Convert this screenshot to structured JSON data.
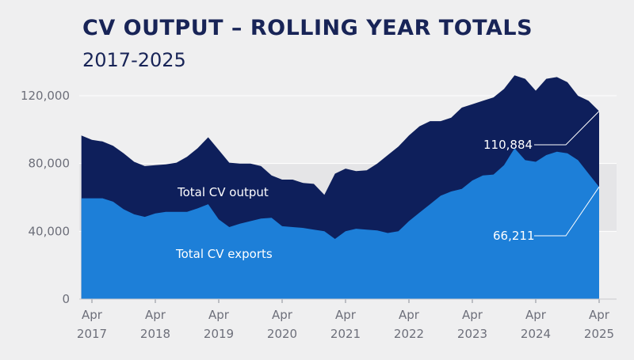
{
  "title": "CV OUTPUT – ROLLING YEAR TOTALS",
  "subtitle": "2017-2025",
  "colors": {
    "output": "#0e1f5b",
    "exports": "#1d7fd8",
    "background": "#efeff0",
    "plot_band": "#e5e5e7",
    "title": "#182457",
    "axis_text": "#6d6f7a"
  },
  "chart_data": {
    "type": "area",
    "title": "CV OUTPUT – ROLLING YEAR TOTALS",
    "subtitle": "2017-2025",
    "ylim": [
      0,
      120000
    ],
    "yticks": [
      0,
      40000,
      80000,
      120000
    ],
    "ytick_labels": [
      "0",
      "40,000",
      "80,000",
      "120,000"
    ],
    "xticks": [
      "2017-04",
      "2018-04",
      "2019-04",
      "2020-04",
      "2021-04",
      "2022-04",
      "2023-04",
      "2024-04",
      "2025-04"
    ],
    "xtick_labels": [
      {
        "month": "Apr",
        "year": "2017"
      },
      {
        "month": "Apr",
        "year": "2018"
      },
      {
        "month": "Apr",
        "year": "2019"
      },
      {
        "month": "Apr",
        "year": "2020"
      },
      {
        "month": "Apr",
        "year": "2021"
      },
      {
        "month": "Apr",
        "year": "2022"
      },
      {
        "month": "Apr",
        "year": "2023"
      },
      {
        "month": "Apr",
        "year": "2024"
      },
      {
        "month": "Apr",
        "year": "2025"
      }
    ],
    "x": [
      "2017-02",
      "2017-04",
      "2017-06",
      "2017-08",
      "2017-10",
      "2017-12",
      "2018-02",
      "2018-04",
      "2018-06",
      "2018-08",
      "2018-10",
      "2018-12",
      "2019-02",
      "2019-04",
      "2019-06",
      "2019-08",
      "2019-10",
      "2019-12",
      "2020-02",
      "2020-04",
      "2020-06",
      "2020-08",
      "2020-10",
      "2020-12",
      "2021-02",
      "2021-04",
      "2021-06",
      "2021-08",
      "2021-10",
      "2021-12",
      "2022-02",
      "2022-04",
      "2022-06",
      "2022-08",
      "2022-10",
      "2022-12",
      "2023-02",
      "2023-04",
      "2023-06",
      "2023-08",
      "2023-10",
      "2023-12",
      "2024-02",
      "2024-04",
      "2024-06",
      "2024-08",
      "2024-10",
      "2024-12",
      "2025-02",
      "2025-04"
    ],
    "series": [
      {
        "name": "Total CV output",
        "color": "#0e1f5b",
        "values": [
          96500,
          94000,
          93000,
          90500,
          86000,
          81000,
          78500,
          79000,
          79500,
          80500,
          84000,
          89000,
          95500,
          88000,
          80500,
          80000,
          80000,
          78500,
          73000,
          70500,
          70500,
          68500,
          68000,
          61500,
          74000,
          77000,
          75500,
          76000,
          80000,
          85000,
          90000,
          96500,
          102000,
          105000,
          105000,
          107000,
          113000,
          115000,
          117000,
          119000,
          124000,
          132000,
          130000,
          123000,
          130000,
          131000,
          128000,
          120000,
          117000,
          110884
        ]
      },
      {
        "name": "Total CV exports",
        "color": "#1d7fd8",
        "values": [
          59500,
          59500,
          59500,
          57500,
          53000,
          50000,
          48500,
          50500,
          51500,
          51500,
          51500,
          53500,
          56000,
          47000,
          42500,
          44500,
          46000,
          47500,
          48000,
          43000,
          42500,
          42000,
          41000,
          40000,
          35500,
          40000,
          41500,
          41000,
          40500,
          39000,
          40000,
          46000,
          51000,
          56000,
          61000,
          63500,
          65000,
          70000,
          73000,
          73500,
          79000,
          89000,
          82000,
          81000,
          85000,
          87000,
          86000,
          82000,
          74000,
          66211
        ]
      }
    ],
    "series_labels": [
      "Total CV output",
      "Total CV exports"
    ],
    "annotations": [
      {
        "text": "110,884",
        "series": "Total CV output",
        "x": "2025-04",
        "value": 110884
      },
      {
        "text": "66,211",
        "series": "Total CV exports",
        "x": "2025-04",
        "value": 66211
      }
    ],
    "grid": true,
    "legend": "inline labels"
  }
}
